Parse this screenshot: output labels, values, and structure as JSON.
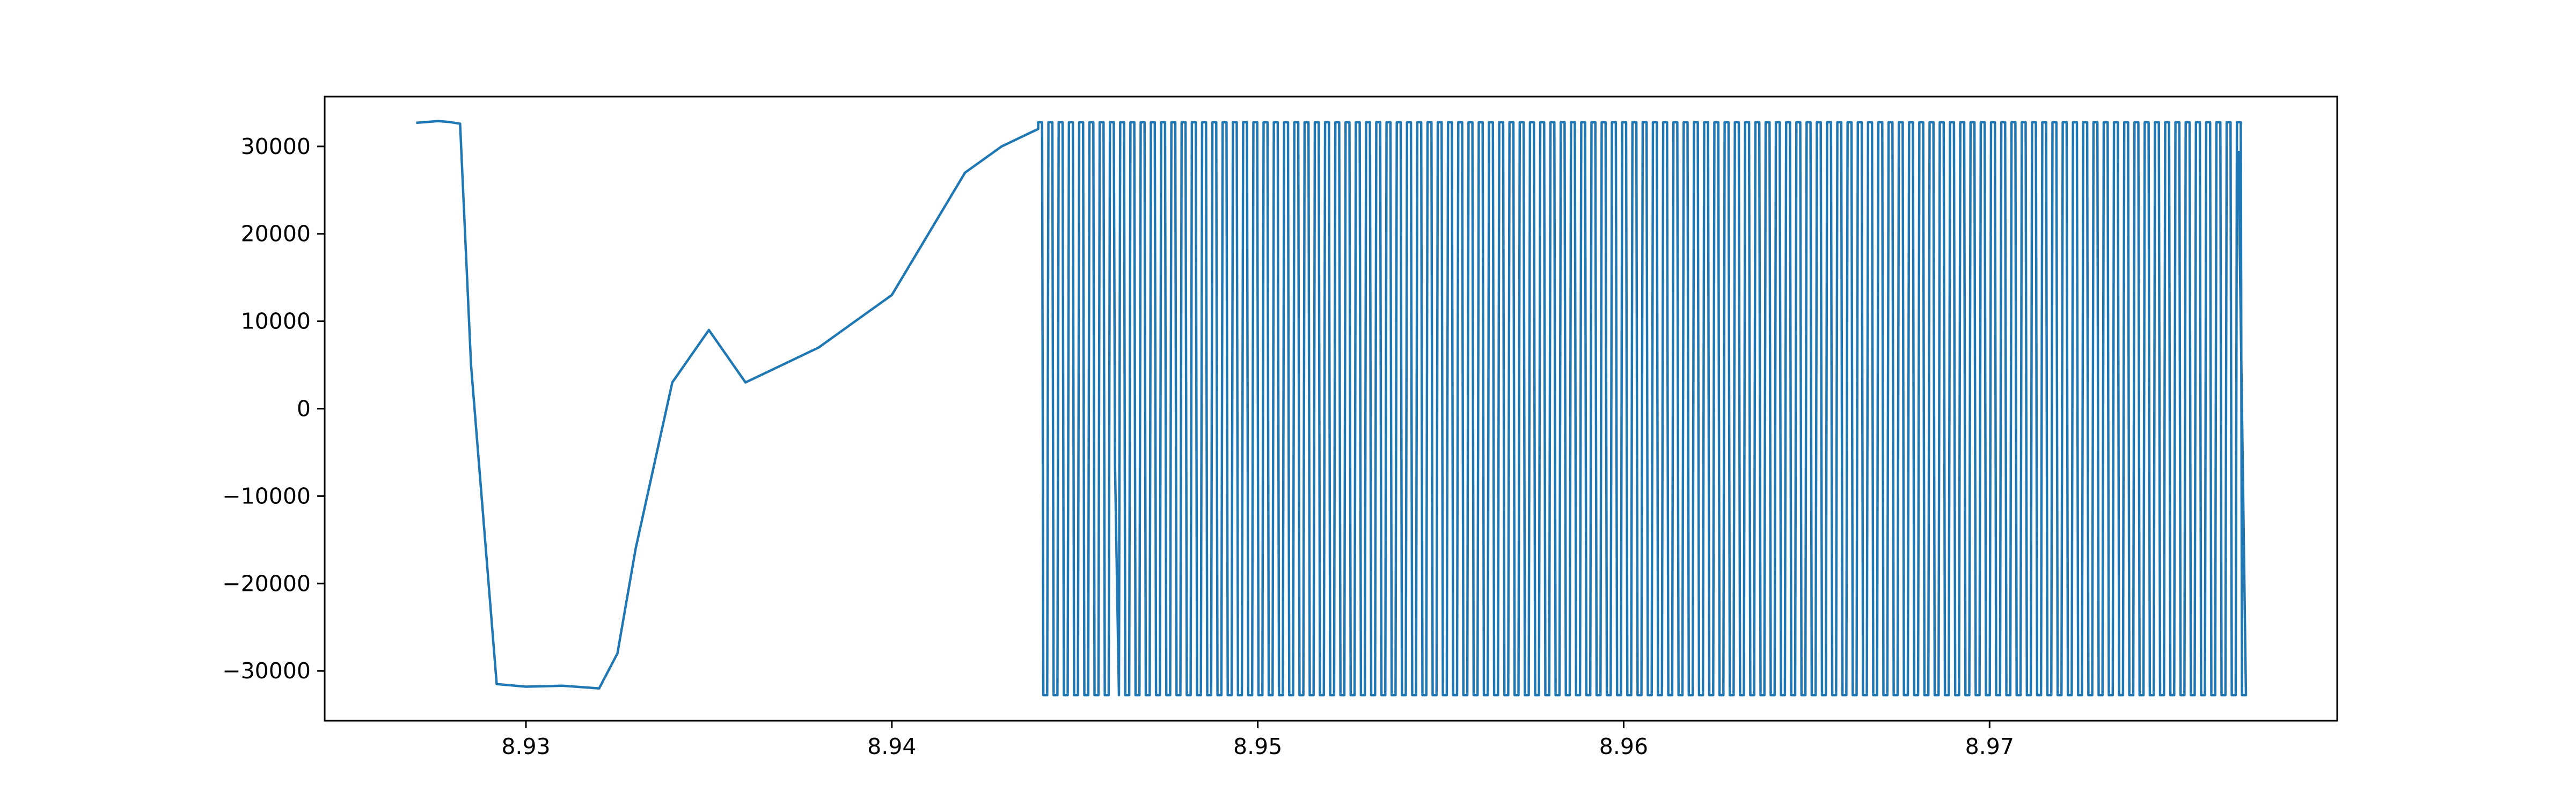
{
  "chart_data": {
    "type": "line",
    "title": "",
    "xlabel": "",
    "ylabel": "",
    "xlim": [
      8.9245,
      8.9795
    ],
    "ylim": [
      -35700,
      35700
    ],
    "xticks": [
      8.93,
      8.94,
      8.95,
      8.96,
      8.97
    ],
    "xtick_labels": [
      "8.93",
      "8.94",
      "8.95",
      "8.96",
      "8.97"
    ],
    "yticks": [
      30000,
      20000,
      10000,
      0,
      -10000,
      -20000,
      -30000
    ],
    "ytick_labels": [
      "30000",
      "20000",
      "10000",
      "0",
      "−10000",
      "−20000",
      "−30000"
    ],
    "grid": false,
    "legend": "none",
    "line_color": "#1f77b4",
    "series": [
      {
        "x": [
          8.927,
          8.9273,
          8.9276,
          8.9279,
          8.9282,
          8.9285,
          8.9292,
          8.93,
          8.931,
          8.932,
          8.9325,
          8.933,
          8.934,
          8.935,
          8.936,
          8.937,
          8.938,
          8.939,
          8.94,
          8.941,
          8.942,
          8.943,
          8.944
        ],
        "y": [
          32700,
          32800,
          32900,
          32800,
          32600,
          5000,
          -31500,
          -31800,
          -31700,
          -32000,
          -28000,
          -16000,
          3000,
          9000,
          3000,
          5000,
          7000,
          10000,
          13000,
          20000,
          27000,
          30000,
          32000
        ]
      }
    ],
    "oscillation": {
      "start_x": 8.944,
      "end_x": 8.9768,
      "max_y": 32767,
      "min_y": -32768,
      "period": 0.00028
    }
  }
}
